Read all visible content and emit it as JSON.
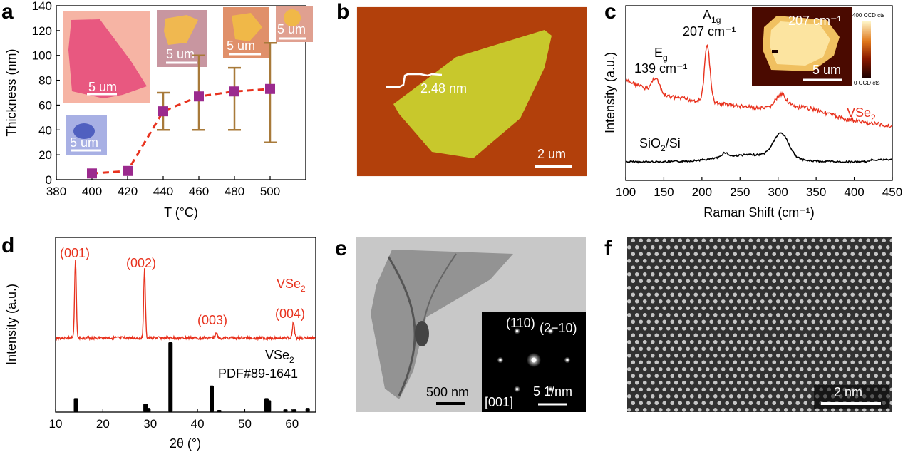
{
  "panels": {
    "a": "a",
    "b": "b",
    "c": "c",
    "d": "d",
    "e": "e",
    "f": "f"
  },
  "colors": {
    "red": "#e8321e",
    "magenta": "#9b2a8e",
    "errorbar": "#a87a3a",
    "afm_bg": "#b8430a",
    "afm_flake": "#c8c82c",
    "black": "#000000"
  },
  "chart_data": [
    {
      "panel": "a",
      "type": "scatter",
      "xlabel": "T (°C)",
      "ylabel": "Thickness (nm)",
      "xlim": [
        380,
        520
      ],
      "ylim": [
        0,
        140
      ],
      "xticks": [
        380,
        400,
        420,
        440,
        460,
        480,
        500
      ],
      "yticks": [
        0,
        20,
        40,
        60,
        80,
        100,
        120,
        140
      ],
      "x": [
        400,
        420,
        440,
        460,
        480,
        500
      ],
      "y": [
        5,
        7,
        55,
        67,
        71,
        73
      ],
      "err_low": [
        5,
        7,
        40,
        40,
        40,
        30
      ],
      "err_high": [
        5,
        7,
        70,
        100,
        90,
        110
      ],
      "scale_labels": [
        "5 um",
        "5 um",
        "5 um",
        "5 um",
        "5 um"
      ]
    },
    {
      "panel": "b",
      "type": "image",
      "height_label": "2.48 nm",
      "scale_label": "2 um"
    },
    {
      "panel": "c",
      "type": "line",
      "xlabel": "Raman Shift (cm⁻¹)",
      "ylabel": "Intensity (a.u.)",
      "xlim": [
        100,
        450
      ],
      "xticks": [
        100,
        150,
        200,
        250,
        300,
        350,
        400,
        450
      ],
      "series": [
        {
          "name": "VSe₂",
          "peaks": [
            139,
            207,
            304
          ]
        },
        {
          "name": "SiO₂/Si",
          "peaks": [
            230,
            304
          ]
        }
      ],
      "annotations": {
        "eg_label": "E",
        "eg_sub": "g",
        "eg_value": "139 cm⁻¹",
        "a1g_label": "A",
        "a1g_sub": "1g",
        "a1g_value": "207 cm⁻¹",
        "inset_label": "207 cm⁻¹",
        "inset_scale": "5 um",
        "colorbar_max": "400 CCD cts",
        "colorbar_min": "0 CCD cts"
      }
    },
    {
      "panel": "d",
      "type": "line",
      "xlabel": "2θ (°)",
      "ylabel": "Intensity (a.u.)",
      "xlim": [
        10,
        65
      ],
      "xticks": [
        10,
        20,
        30,
        40,
        50,
        60
      ],
      "series": [
        {
          "name": "VSe₂",
          "peaks": [
            14.2,
            28.8,
            44.0,
            60.3
          ]
        },
        {
          "name": "VSe₂ PDF#89-1641",
          "sticks": [
            {
              "x": 14.3,
              "h": 0.2
            },
            {
              "x": 29.0,
              "h": 0.12
            },
            {
              "x": 29.6,
              "h": 0.06
            },
            {
              "x": 34.3,
              "h": 1.0
            },
            {
              "x": 43.0,
              "h": 0.38
            },
            {
              "x": 44.6,
              "h": 0.03
            },
            {
              "x": 54.6,
              "h": 0.2
            },
            {
              "x": 55.1,
              "h": 0.17
            },
            {
              "x": 58.6,
              "h": 0.04
            },
            {
              "x": 60.5,
              "h": 0.04
            },
            {
              "x": 63.3,
              "h": 0.06
            }
          ]
        }
      ],
      "peak_labels": [
        "(001)",
        "(002)",
        "(003)",
        "(004)"
      ],
      "ref_line1": "VSe",
      "ref_line1_sub": "2",
      "ref_line2": "PDF#89-1641"
    },
    {
      "panel": "e",
      "type": "image",
      "scale_label": "500 nm",
      "saed_labels": [
        "(110)",
        "(2−10)",
        "[001]",
        "5 1/nm"
      ]
    },
    {
      "panel": "f",
      "type": "image",
      "scale_label": "2 nm"
    }
  ]
}
